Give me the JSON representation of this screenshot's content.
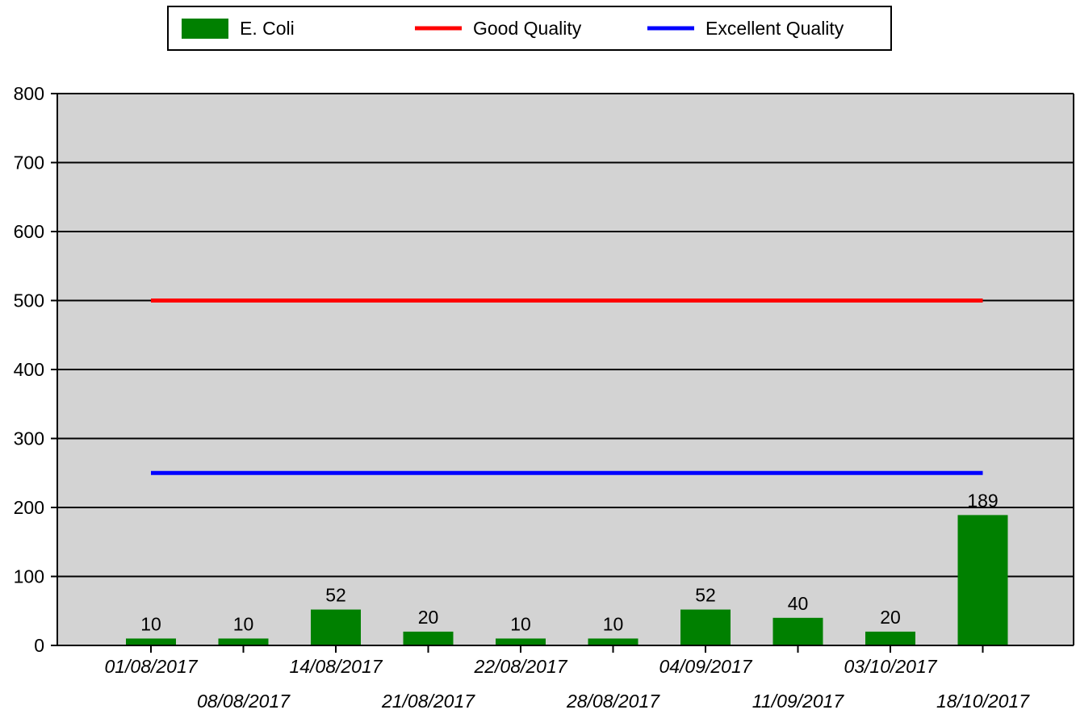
{
  "chart_data": {
    "type": "bar",
    "categories": [
      "01/08/2017",
      "08/08/2017",
      "14/08/2017",
      "21/08/2017",
      "22/08/2017",
      "28/08/2017",
      "04/09/2017",
      "11/09/2017",
      "03/10/2017",
      "18/10/2017"
    ],
    "series": [
      {
        "name": "E. Coli",
        "kind": "bar",
        "color": "#008000",
        "values": [
          10,
          10,
          52,
          20,
          10,
          10,
          52,
          40,
          20,
          189
        ]
      },
      {
        "name": "Good Quality",
        "kind": "line",
        "color": "#ff0000",
        "values": [
          500,
          500,
          500,
          500,
          500,
          500,
          500,
          500,
          500,
          500
        ]
      },
      {
        "name": "Excellent Quality",
        "kind": "line",
        "color": "#0000ff",
        "values": [
          250,
          250,
          250,
          250,
          250,
          250,
          250,
          250,
          250,
          250
        ]
      }
    ],
    "data_labels": [
      "10",
      "10",
      "52",
      "20",
      "10",
      "10",
      "52",
      "40",
      "20",
      "189"
    ],
    "ylim": [
      0,
      800
    ],
    "yticks": [
      "0",
      "100",
      "200",
      "300",
      "400",
      "500",
      "600",
      "700",
      "800"
    ],
    "grid": true,
    "plot_background": "#d3d3d3",
    "legend_position": "top-center",
    "title": "",
    "xlabel": "",
    "ylabel": ""
  }
}
